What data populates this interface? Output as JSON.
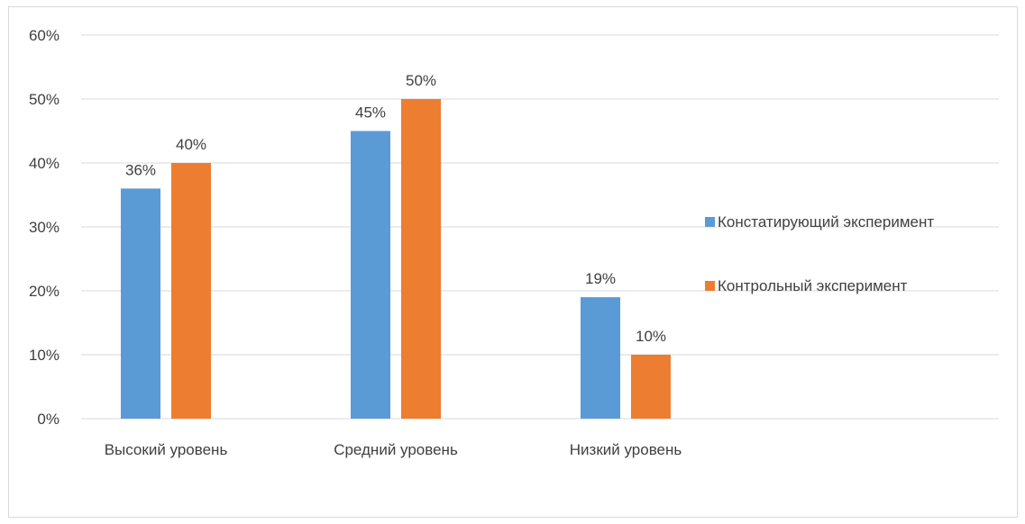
{
  "chart_data": {
    "type": "bar",
    "categories": [
      "Высокий уровень",
      "Средний уровень",
      "Низкий уровень"
    ],
    "series": [
      {
        "name": "Констатирующий эксперимент",
        "values": [
          36,
          45,
          19
        ],
        "labels": [
          "36%",
          "45%",
          "19%"
        ],
        "color": "#5b9bd5"
      },
      {
        "name": "Контрольный эксперимент",
        "values": [
          40,
          50,
          10
        ],
        "labels": [
          "40%",
          "50%",
          "10%"
        ],
        "color": "#ed7d31"
      }
    ],
    "y_ticks": [
      "0%",
      "10%",
      "20%",
      "30%",
      "40%",
      "50%",
      "60%"
    ],
    "ylim": [
      0,
      60
    ],
    "grid": true,
    "legend_position": "right"
  }
}
